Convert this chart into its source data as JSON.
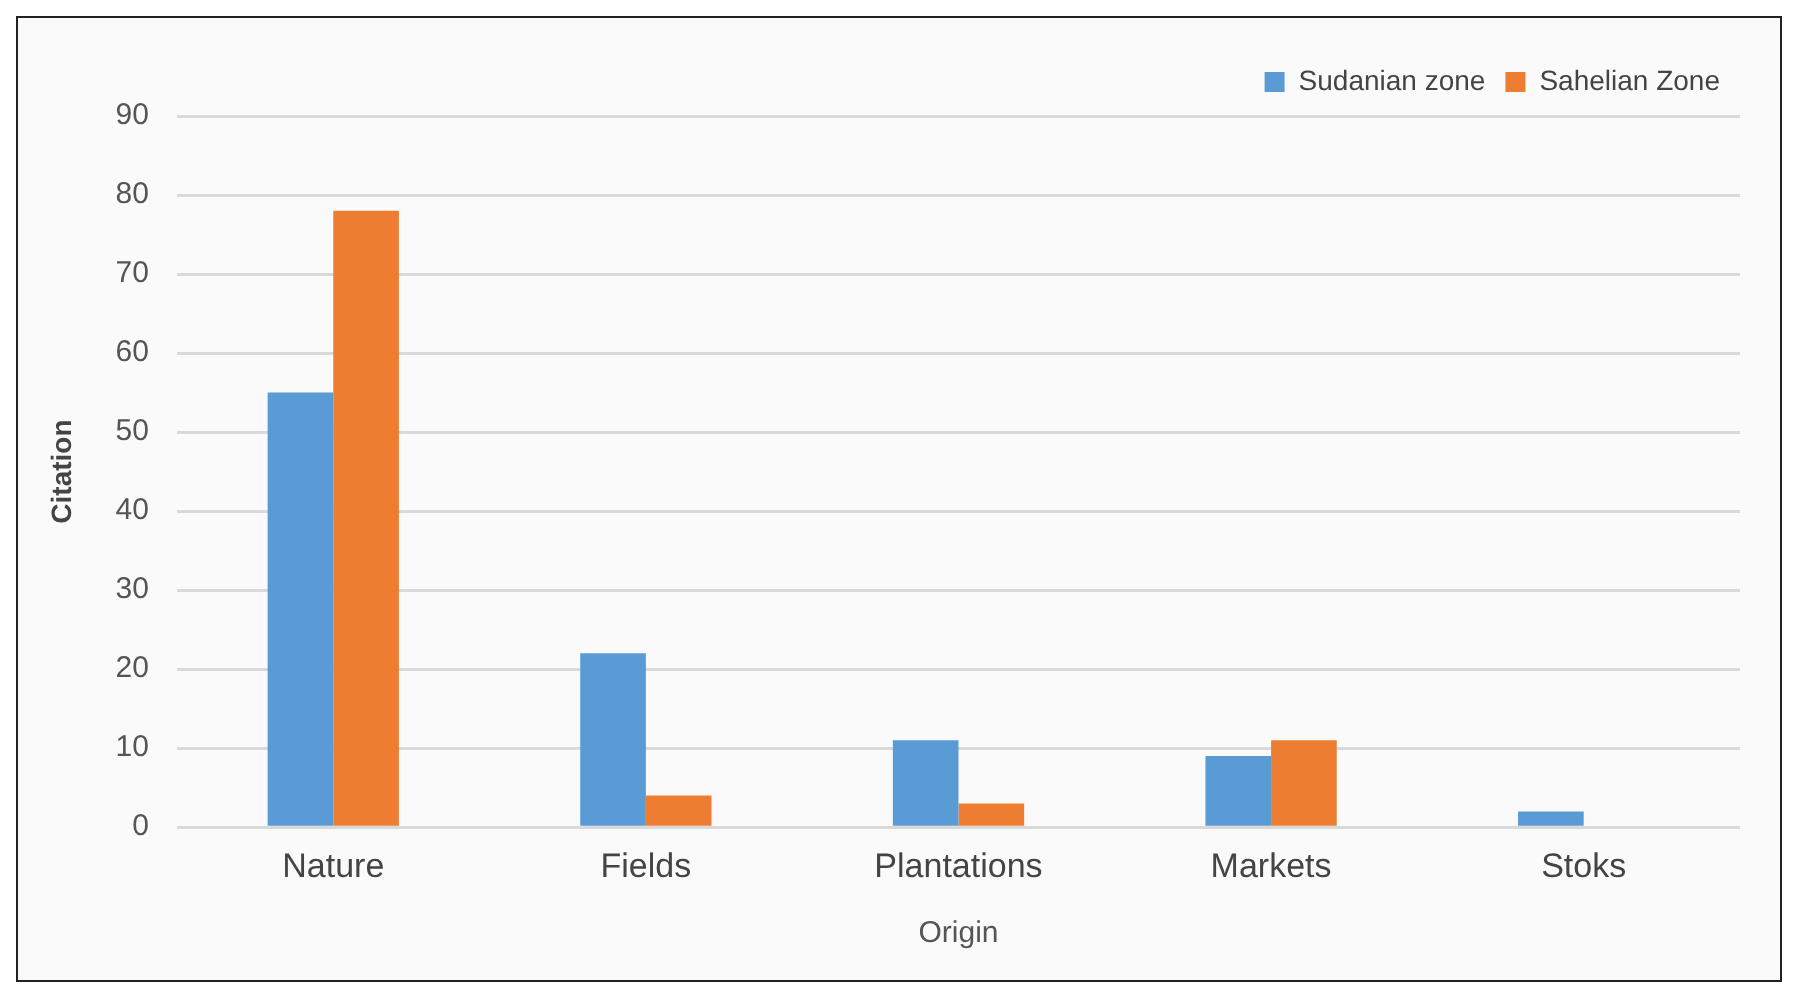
{
  "chart_data": {
    "type": "bar",
    "xlabel": "Origin",
    "ylabel": "Citation",
    "categories": [
      "Nature",
      "Fields",
      "Plantations",
      "Markets",
      "Stoks"
    ],
    "series": [
      {
        "name": "Sudanian zone",
        "color": "#5b9bd5",
        "values": [
          55,
          22,
          11,
          9,
          2
        ]
      },
      {
        "name": "Sahelian Zone",
        "color": "#ed7d31",
        "values": [
          78,
          4,
          3,
          11,
          0
        ]
      }
    ],
    "ylim": [
      0,
      90
    ],
    "yticks": [
      0,
      10,
      20,
      30,
      40,
      50,
      60,
      70,
      80,
      90
    ],
    "grid": "y",
    "legend": "top right"
  }
}
